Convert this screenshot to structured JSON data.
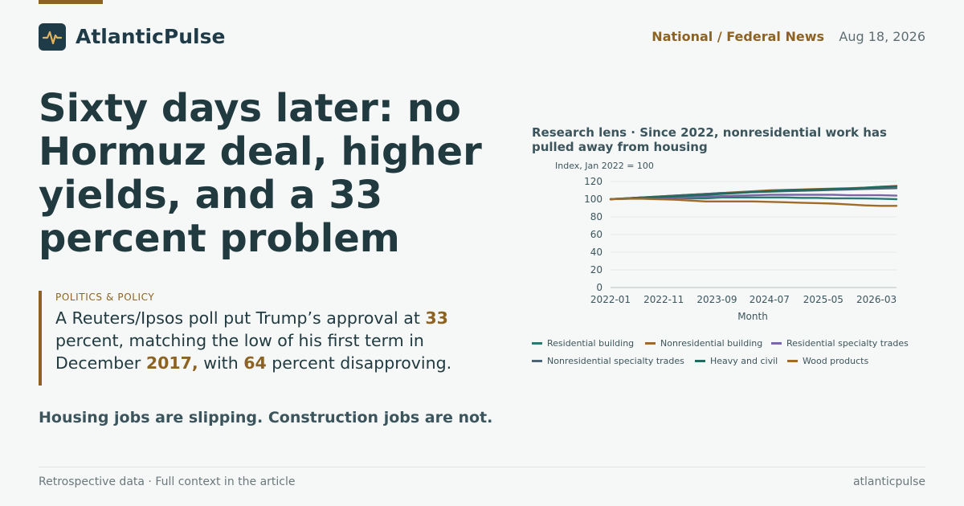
{
  "header": {
    "brand": "AtlanticPulse",
    "section": "National / Federal News",
    "date": "Aug 18, 2026"
  },
  "headline": "Sixty days later: no Hormuz deal, higher yields, and a 33 percent problem",
  "quote": {
    "kicker": "POLITICS & POLICY",
    "parts": [
      {
        "text": "A Reuters/Ipsos poll put Trump’s approval at ",
        "hl": false
      },
      {
        "text": "33",
        "hl": true
      },
      {
        "text": " percent, matching the low of his first term in December ",
        "hl": false
      },
      {
        "text": "2017,",
        "hl": true
      },
      {
        "text": " with ",
        "hl": false
      },
      {
        "text": "64",
        "hl": true
      },
      {
        "text": " percent disapproving.",
        "hl": false
      }
    ]
  },
  "subhead": "Housing jobs are slipping. Construction jobs are not.",
  "footer": {
    "left": "Retrospective data · Full context in the article",
    "right": "atlanticpulse"
  },
  "colors": {
    "accent": "#8c6323",
    "brand_dark": "#1f3b47",
    "text": "#213a40"
  },
  "chart_data": {
    "type": "line",
    "title": "Research lens · Since 2022, nonresidential work has pulled away from housing",
    "ylabel": "Index, Jan 2022 = 100",
    "xlabel": "Month",
    "ylim": [
      0,
      120
    ],
    "yticks": [
      0,
      20,
      40,
      60,
      80,
      100,
      120
    ],
    "xticks": [
      "2022-01",
      "2022-11",
      "2023-09",
      "2024-07",
      "2025-05",
      "2026-03"
    ],
    "x": [
      "2022-01",
      "2022-04",
      "2022-07",
      "2022-10",
      "2023-01",
      "2023-04",
      "2023-07",
      "2023-10",
      "2024-01",
      "2024-04",
      "2024-07",
      "2024-10",
      "2025-01",
      "2025-04",
      "2025-07",
      "2025-10",
      "2026-01",
      "2026-04",
      "2026-07"
    ],
    "grid": true,
    "legend_position": "bottom",
    "series": [
      {
        "name": "Residential building",
        "color": "#2a7a72",
        "values": [
          100,
          100.5,
          101,
          101.5,
          101.5,
          101,
          101,
          102,
          102,
          102,
          102,
          102,
          101.5,
          101.5,
          101,
          101,
          100.8,
          100.5,
          100
        ]
      },
      {
        "name": "Nonresidential building",
        "color": "#9c6a2e",
        "values": [
          100,
          101,
          102,
          103,
          104,
          105,
          106,
          107,
          108,
          109,
          110,
          110.5,
          111,
          111.5,
          112,
          112.5,
          113,
          114,
          115
        ]
      },
      {
        "name": "Residential specialty trades",
        "color": "#7b67a8",
        "values": [
          100,
          100.5,
          101,
          102,
          102,
          102.5,
          103,
          103.5,
          104,
          104.5,
          105,
          105,
          105,
          105,
          105,
          104.5,
          104.5,
          104.5,
          104
        ]
      },
      {
        "name": "Nonresidential specialty trades",
        "color": "#4d6473",
        "values": [
          100,
          101,
          102,
          103,
          104,
          105,
          106,
          107,
          107.5,
          108,
          108.5,
          109,
          109.5,
          110,
          110.5,
          111,
          111.5,
          112,
          112.5
        ]
      },
      {
        "name": "Heavy and civil",
        "color": "#1f6b5e",
        "values": [
          100,
          101,
          102,
          102.5,
          103,
          104,
          105,
          106,
          107,
          108,
          109,
          110,
          110.5,
          111,
          111.5,
          112,
          113,
          114,
          114.5
        ]
      },
      {
        "name": "Wood products",
        "color": "#a06a28",
        "values": [
          100,
          100.5,
          100.5,
          100,
          99.5,
          98.5,
          97.5,
          97.5,
          97.5,
          97.5,
          97,
          96.5,
          96,
          95.5,
          95,
          94,
          93,
          92.5,
          92.5
        ]
      }
    ]
  }
}
